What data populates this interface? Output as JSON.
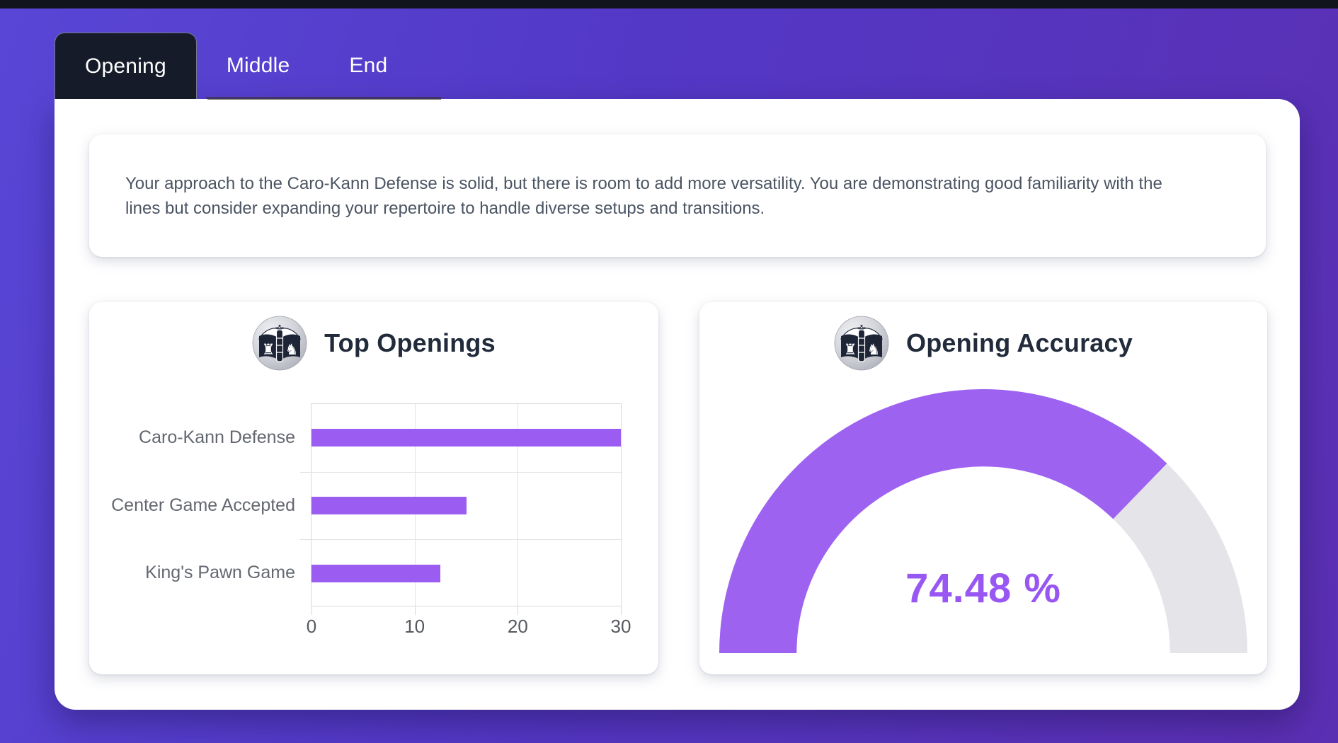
{
  "tabs": {
    "items": [
      {
        "label": "Opening",
        "active": true
      },
      {
        "label": "Middle",
        "active": false
      },
      {
        "label": "End",
        "active": false
      }
    ]
  },
  "summary": {
    "text": "Your approach to the Caro-Kann Defense is solid, but there is room to add more versatility. You are demonstrating good familiarity with the lines but consider expanding your repertoire to handle diverse setups and transitions."
  },
  "icons": {
    "logo": "chess-openings-book-logo"
  },
  "colors": {
    "accent_purple": "#9b5cf1",
    "gauge_track": "#e5e4e8",
    "gauge_value_text": "#9857f2",
    "tab_active_bg": "#161b29",
    "title_text": "#222b3b",
    "body_text": "#4a5462",
    "chart_label_text": "#63676f",
    "background_left": "#5946d6",
    "background_right": "#5b2fb2",
    "top_bar": "#11141c"
  },
  "chart_data": [
    {
      "type": "bar",
      "orientation": "horizontal",
      "title": "Top Openings",
      "categories": [
        "Caro-Kann Defense",
        "Center Game Accepted",
        "King's Pawn Game"
      ],
      "values": [
        30,
        15,
        12.5
      ],
      "xlabel": "",
      "ylabel": "",
      "xlim": [
        0,
        30
      ],
      "xticks": [
        0,
        10,
        20,
        30
      ],
      "grid": true,
      "legend": false,
      "bar_color": "#9b5cf1"
    },
    {
      "type": "gauge",
      "title": "Opening Accuracy",
      "value": 74.48,
      "min": 0,
      "max": 100,
      "unit": "%",
      "label": "74.48 %",
      "arc_color": "#9e62f0",
      "track_color": "#e5e4e8",
      "label_color": "#9857f2"
    }
  ]
}
